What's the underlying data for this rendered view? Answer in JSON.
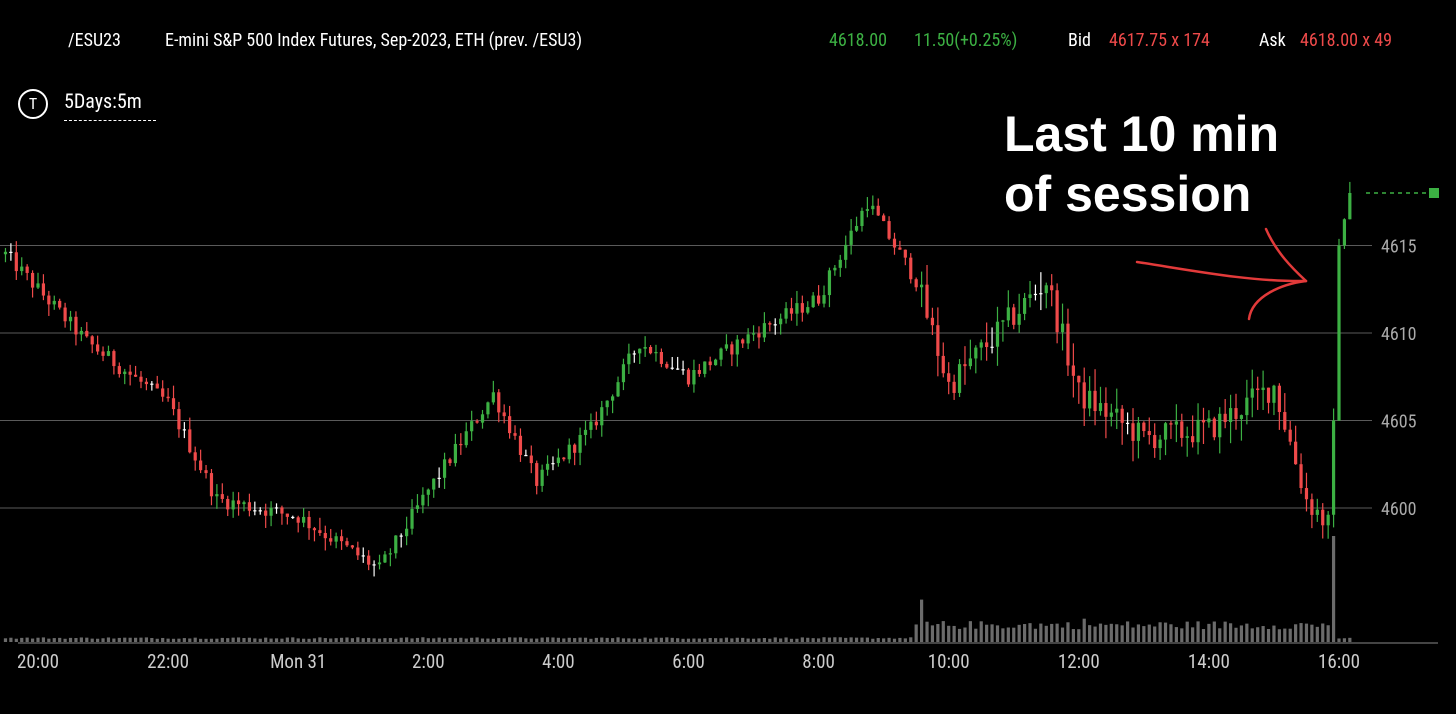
{
  "header": {
    "symbol": "/ESU23",
    "description": "E-mini S&P 500 Index Futures, Sep-2023, ETH (prev. /ESU3)",
    "last_price": "4618.00",
    "change": "11.50(+0.25%)",
    "bid_label": "Bid",
    "bid_value": "4617.75 x 174",
    "ask_label": "Ask",
    "ask_value": "4618.00 x 49"
  },
  "timeframe": {
    "icon": "T",
    "label": "5Days:5m"
  },
  "annotation": {
    "line1": "Last 10 min",
    "line2": "of session",
    "arrow_color": "#e23a3a"
  },
  "colors": {
    "up": "#3cb043",
    "down": "#ef4a4a",
    "neutral": "#ffffff",
    "volume": "#6b6b6b",
    "grid": "#5a5a5a"
  },
  "chart_data": {
    "type": "candlestick",
    "timeframe": "5m",
    "y_ticks": [
      4600,
      4605,
      4610,
      4615
    ],
    "ylim": [
      4594.5,
      4618.7
    ],
    "x_ticks": [
      "20:00",
      "22:00",
      "Mon 31",
      "2:00",
      "4:00",
      "6:00",
      "8:00",
      "10:00",
      "12:00",
      "14:00",
      "16:00"
    ],
    "last_price": 4618.0,
    "key_points": [
      {
        "time": "19:30",
        "price": 4614.5
      },
      {
        "time": "20:45",
        "price": 4609.5
      },
      {
        "time": "22:00",
        "price": 4606.0
      },
      {
        "time": "22:45",
        "price": 4600.5
      },
      {
        "time": "00:00",
        "price": 4599.5
      },
      {
        "time": "01:15",
        "price": 4596.5
      },
      {
        "time": "02:00",
        "price": 4601.0
      },
      {
        "time": "03:00",
        "price": 4606.5
      },
      {
        "time": "03:40",
        "price": 4601.5
      },
      {
        "time": "04:30",
        "price": 4604.5
      },
      {
        "time": "05:15",
        "price": 4609.5
      },
      {
        "time": "06:00",
        "price": 4607.5
      },
      {
        "time": "07:00",
        "price": 4610.0
      },
      {
        "time": "08:00",
        "price": 4612.0
      },
      {
        "time": "08:45",
        "price": 4617.5
      },
      {
        "time": "09:30",
        "price": 4613.0
      },
      {
        "time": "10:00",
        "price": 4607.0
      },
      {
        "time": "11:00",
        "price": 4611.0
      },
      {
        "time": "11:30",
        "price": 4613.0
      },
      {
        "time": "12:00",
        "price": 4606.5
      },
      {
        "time": "13:00",
        "price": 4604.0
      },
      {
        "time": "14:00",
        "price": 4604.5
      },
      {
        "time": "15:00",
        "price": 4607.0
      },
      {
        "time": "15:30",
        "price": 4600.5
      },
      {
        "time": "15:50",
        "price": 4599.0
      },
      {
        "time": "15:55",
        "price": 4605.0
      },
      {
        "time": "16:00",
        "price": 4615.0
      },
      {
        "time": "16:10",
        "price": 4618.0
      }
    ],
    "volume_spikes": [
      {
        "time": "09:35",
        "level": 0.4
      },
      {
        "time": "12:05",
        "level": 0.22
      },
      {
        "time": "15:55",
        "level": 1.0
      }
    ]
  }
}
